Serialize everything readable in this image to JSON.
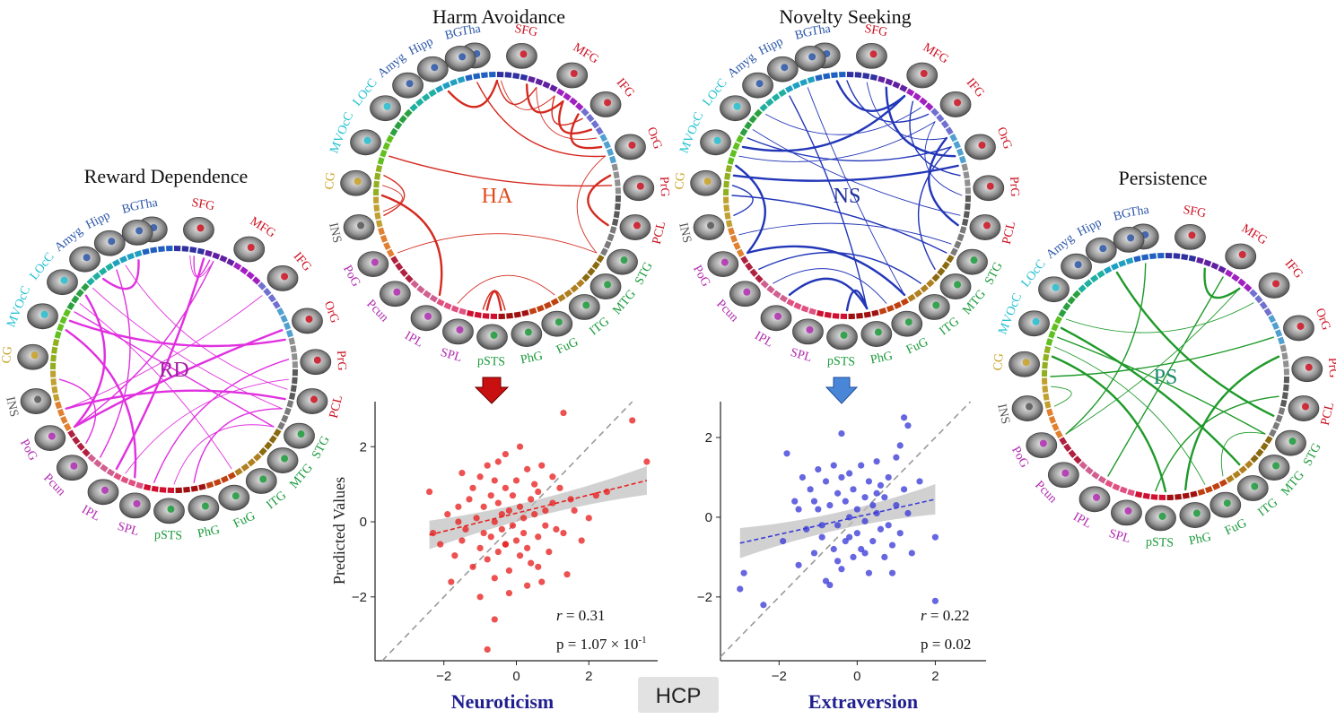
{
  "regions": [
    "Tha",
    "SFG",
    "MFG",
    "IFG",
    "OrG",
    "PrG",
    "PCL",
    "STG",
    "MTG",
    "ITG",
    "FuG",
    "PhG",
    "pSTS",
    "SPL",
    "IPL",
    "Pcun",
    "PoG",
    "INS",
    "CG",
    "MVOcC",
    "LOcC",
    "Amyg",
    "Hipp",
    "BG"
  ],
  "colors": {
    "Tha": "#2b56a8",
    "SFG": "#cc1020",
    "MFG": "#cc1020",
    "IFG": "#cc1020",
    "OrG": "#cc1020",
    "PrG": "#cc1020",
    "PCL": "#cc1020",
    "STG": "#1a9a3a",
    "MTG": "#1a9a3a",
    "ITG": "#1a9a3a",
    "FuG": "#1a9a3a",
    "PhG": "#1a9a3a",
    "pSTS": "#1a9a3a",
    "SPL": "#b02ab0",
    "IPL": "#b02ab0",
    "Pcun": "#b02ab0",
    "PoG": "#b02ab0",
    "INS": "#555555",
    "CG": "#c9a020",
    "MVOcC": "#20c0d0",
    "LOcC": "#20c0d0",
    "Amyg": "#2b56a8",
    "Hipp": "#2b56a8",
    "BG": "#2b56a8",
    "ha": "#d42a1f",
    "ns": "#2236b8",
    "rd": "#e030e0",
    "ps": "#1f9a2a",
    "ha_text": "#e04a1a",
    "ns_text": "#1f2e9a",
    "rd_text": "#a020a0",
    "ps_text": "#1a8a6a"
  },
  "circles": [
    {
      "key": "rd",
      "title": "Reward Dependence",
      "center_label": "RD"
    },
    {
      "key": "ha",
      "title": "Harm Avoidance",
      "center_label": "HA"
    },
    {
      "key": "ns",
      "title": "Novelty Seeking",
      "center_label": "NS"
    },
    {
      "key": "ps",
      "title": "Persistence",
      "center_label": "PS"
    }
  ],
  "chart_data": [
    {
      "type": "scatter",
      "title": "",
      "xlabel": "Neuroticism",
      "ylabel": "Predicted Values",
      "xlim": [
        -3.9,
        3.9
      ],
      "ylim": [
        -3.7,
        3.2
      ],
      "xticks": [
        "−2",
        "0",
        "2"
      ],
      "yticks": [
        "−2",
        "0",
        "2"
      ],
      "series": [
        {
          "x": [
            -2.4,
            -2.3,
            -2.1,
            -1.9,
            -1.8,
            -1.7,
            -1.6,
            -1.5,
            -1.5,
            -1.4,
            -1.3,
            -1.2,
            -1.2,
            -1.1,
            -1.0,
            -1.0,
            -0.9,
            -0.9,
            -0.8,
            -0.8,
            -0.7,
            -0.7,
            -0.6,
            -0.6,
            -0.6,
            -0.5,
            -0.5,
            -0.5,
            -0.4,
            -0.4,
            -0.3,
            -0.3,
            -0.3,
            -0.2,
            -0.2,
            -0.1,
            -0.1,
            0.0,
            0.0,
            0.1,
            0.1,
            0.1,
            0.2,
            0.2,
            0.3,
            0.3,
            0.4,
            0.4,
            0.5,
            0.5,
            0.6,
            0.6,
            0.7,
            0.7,
            0.8,
            0.9,
            1.0,
            1.0,
            1.1,
            1.2,
            1.3,
            1.4,
            1.5,
            1.6,
            1.8,
            2.0,
            2.2,
            2.5,
            3.2,
            3.6,
            -0.6,
            -0.8,
            -0.2,
            0.3,
            0.8,
            1.3,
            -1.0,
            -0.3,
            0.6,
            -1.6
          ],
          "y": [
            0.8,
            -0.3,
            -0.6,
            0.2,
            -1.6,
            -0.9,
            0.4,
            -0.5,
            1.3,
            -0.2,
            0.6,
            -1.2,
            0.9,
            0.1,
            -0.7,
            1.2,
            0.4,
            -0.3,
            1.5,
            -1.0,
            0.7,
            -0.4,
            1.1,
            0.0,
            -1.5,
            0.5,
            -0.8,
            1.6,
            0.2,
            -0.2,
            0.9,
            -0.6,
            1.8,
            0.3,
            -1.3,
            0.7,
            -0.1,
            1.1,
            -0.5,
            0.4,
            -0.9,
            2.0,
            0.1,
            -0.3,
            1.4,
            -0.7,
            0.6,
            -1.1,
            0.2,
            1.0,
            -0.4,
            0.8,
            -1.6,
            1.5,
            0.3,
            -0.8,
            1.2,
            0.5,
            -0.2,
            0.9,
            2.9,
            -1.4,
            0.6,
            0.3,
            -0.5,
            0.1,
            0.7,
            0.8,
            2.7,
            1.6,
            -2.6,
            -3.4,
            -1.9,
            -1.7,
            -0.1,
            -0.3,
            -2.0,
            -0.6,
            -1.2,
            0.0
          ],
          "fit": {
            "x": [
              -2.4,
              3.6
            ],
            "y": [
              -0.35,
              1.1
            ]
          }
        }
      ],
      "r": "0.31",
      "p": "p = 1.07 × 10",
      "p_exp": "-1",
      "color": "#e82020"
    },
    {
      "type": "scatter",
      "title": "",
      "xlabel": "Extraversion",
      "ylabel": "",
      "xlim": [
        -3.5,
        3.3
      ],
      "ylim": [
        -3.6,
        2.9
      ],
      "xticks": [
        "−2",
        "0",
        "2"
      ],
      "yticks": [
        "−2",
        "0",
        "2"
      ],
      "series": [
        {
          "x": [
            -3.0,
            -2.9,
            -2.4,
            -1.9,
            -1.8,
            -1.6,
            -1.5,
            -1.4,
            -1.3,
            -1.2,
            -1.1,
            -1.0,
            -1.0,
            -0.9,
            -0.8,
            -0.8,
            -0.7,
            -0.6,
            -0.6,
            -0.5,
            -0.5,
            -0.4,
            -0.4,
            -0.3,
            -0.3,
            -0.2,
            -0.2,
            -0.1,
            -0.1,
            0.0,
            0.0,
            0.1,
            0.1,
            0.2,
            0.2,
            0.3,
            0.3,
            0.4,
            0.4,
            0.5,
            0.5,
            0.6,
            0.6,
            0.7,
            0.7,
            0.8,
            0.8,
            0.9,
            1.0,
            1.0,
            1.1,
            1.2,
            1.2,
            1.3,
            1.4,
            2.0,
            2.0,
            1.3,
            1.1,
            -0.4,
            -0.7,
            -1.5,
            0.9,
            0.2,
            -0.5,
            -1.1,
            1.6,
            -0.2,
            0.5,
            -0.9
          ],
          "y": [
            -1.8,
            -1.4,
            -2.2,
            -0.6,
            1.6,
            0.4,
            -1.2,
            1.0,
            -0.3,
            0.7,
            -0.9,
            1.2,
            0.2,
            -0.5,
            0.9,
            -1.6,
            0.3,
            1.3,
            -0.8,
            0.6,
            -0.2,
            1.0,
            -1.3,
            0.4,
            -0.6,
            1.1,
            0.0,
            -1.0,
            0.7,
            0.2,
            -0.4,
            1.3,
            -0.8,
            0.5,
            -0.1,
            0.9,
            -1.4,
            0.3,
            -0.6,
            1.4,
            0.1,
            -0.3,
            0.8,
            -1.0,
            0.5,
            -0.2,
            1.0,
            -0.7,
            0.3,
            1.5,
            -0.4,
            0.7,
            2.5,
            0.1,
            -0.9,
            -2.1,
            -0.5,
            2.3,
            1.8,
            2.1,
            -1.7,
            0.2,
            -1.4,
            -0.9,
            -1.1,
            0.4,
            0.9,
            -0.5,
            0.6,
            -0.2
          ],
          "fit": {
            "x": [
              -3.0,
              2.0
            ],
            "y": [
              -0.65,
              0.45
            ]
          }
        }
      ],
      "r": "0.22",
      "p": "p = 0.02",
      "p_exp": "",
      "color": "#3b3bd8"
    }
  ],
  "hcp_label": "HCP"
}
